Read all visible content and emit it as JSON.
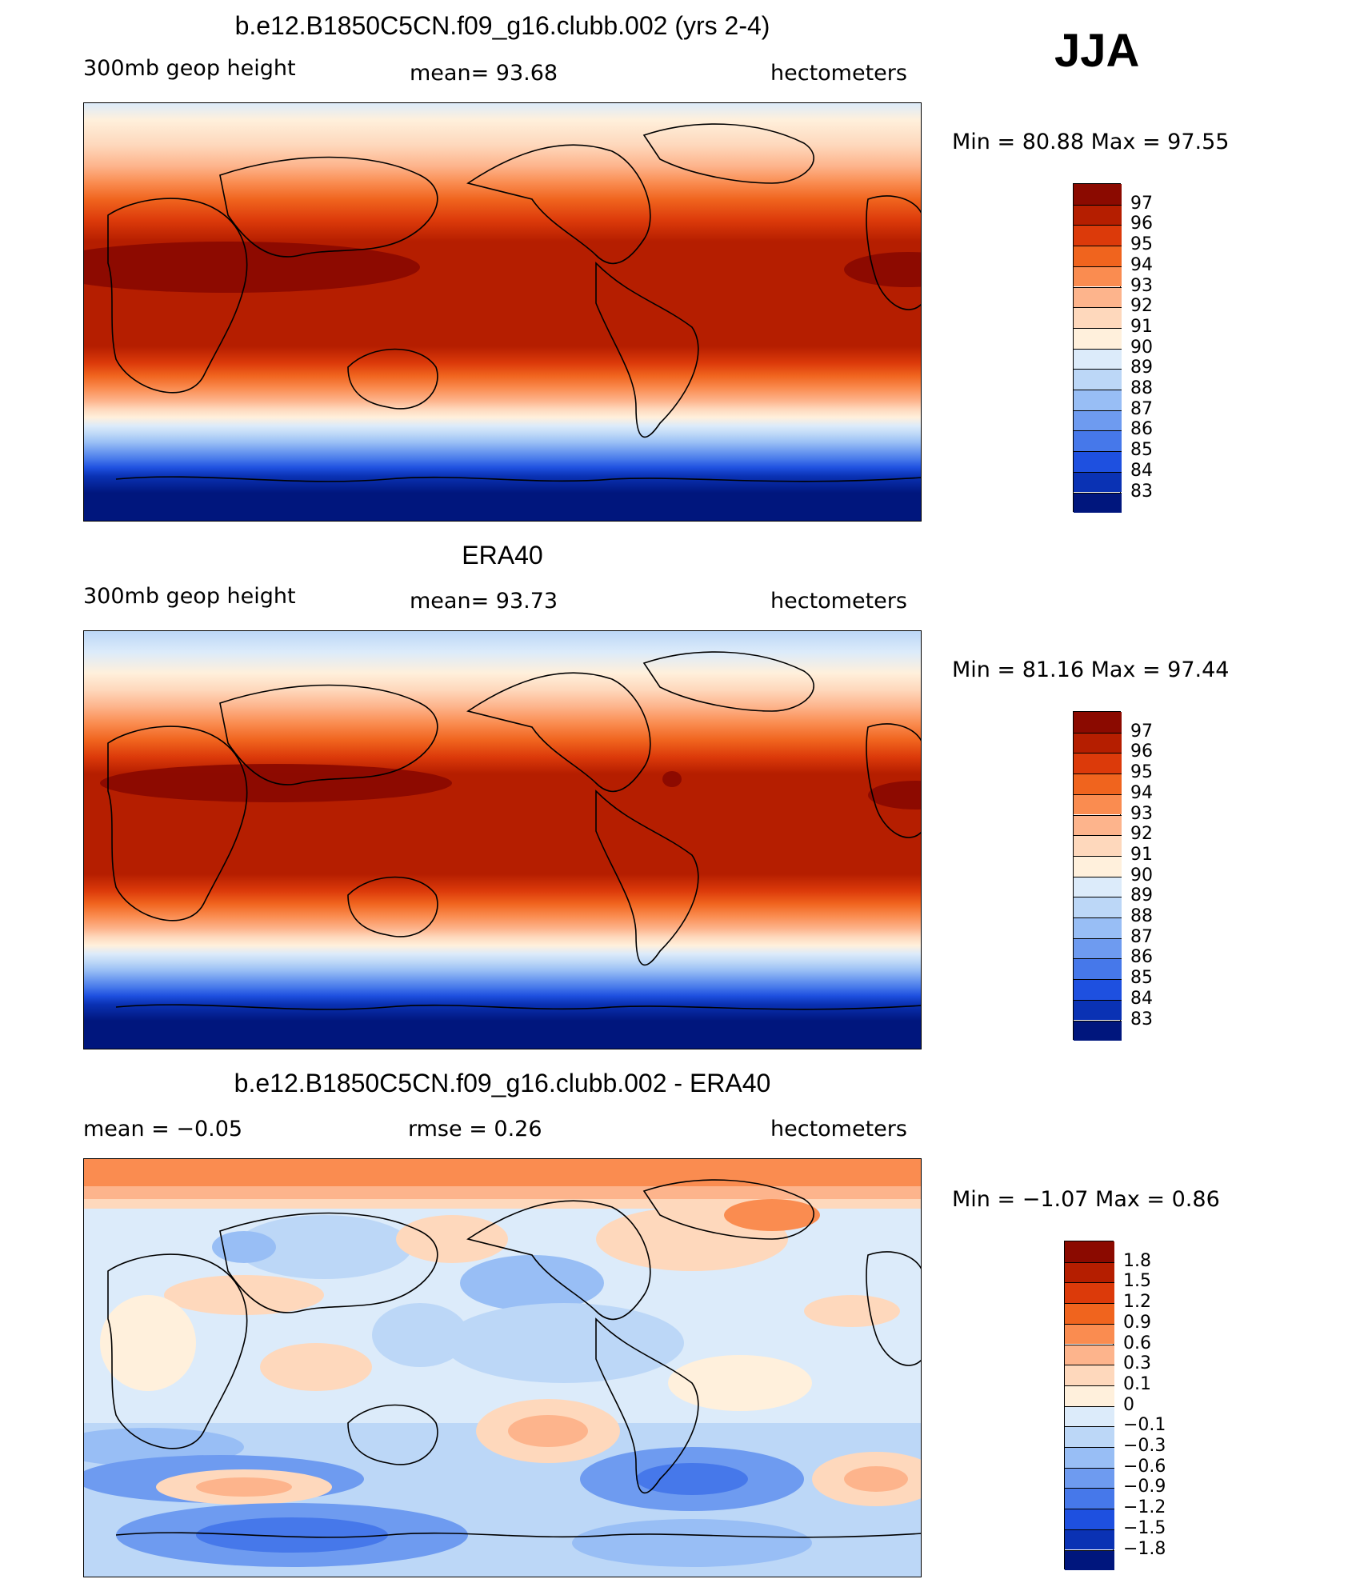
{
  "season": "JJA",
  "panels": [
    {
      "title": "b.e12.B1850C5CN.f09_g16.clubb.002 (yrs 2-4)",
      "variable": "300mb geop height",
      "stat": "mean=   93.68",
      "units": "hectometers",
      "minmax": "Min =   80.88 Max =   97.55"
    },
    {
      "title": "ERA40",
      "variable": "300mb geop height",
      "stat": "mean=   93.73",
      "units": "hectometers",
      "minmax": "Min =   81.16 Max =   97.44"
    },
    {
      "title": "b.e12.B1850C5CN.f09_g16.clubb.002 - ERA40",
      "variable": "mean =   −0.05",
      "stat": "rmse =    0.26",
      "units": "hectometers",
      "minmax": "Min =   −1.07 Max =    0.86"
    }
  ],
  "colorbars": {
    "height": {
      "colors": [
        "#8b0a00",
        "#b51e00",
        "#dc3a0a",
        "#f0641e",
        "#fa8c50",
        "#fdb48c",
        "#fed8bc",
        "#fff0dc",
        "#dcebfa",
        "#bcd7f7",
        "#98bef5",
        "#6e9bf0",
        "#4678ea",
        "#1e50e0",
        "#0a32b4",
        "#00167d"
      ],
      "labels": [
        "97",
        "96",
        "95",
        "94",
        "93",
        "92",
        "91",
        "90",
        "89",
        "88",
        "87",
        "86",
        "85",
        "84",
        "83"
      ]
    },
    "diff": {
      "colors": [
        "#8b0a00",
        "#b51e00",
        "#dc3a0a",
        "#f0641e",
        "#fa8c50",
        "#fdb48c",
        "#fed8bc",
        "#fff0dc",
        "#dcebfa",
        "#bcd7f7",
        "#98bef5",
        "#6e9bf0",
        "#4678ea",
        "#1e50e0",
        "#0a32b4",
        "#00167d"
      ],
      "labels": [
        "1.8",
        "1.5",
        "1.2",
        "0.9",
        "0.6",
        "0.3",
        "0.1",
        "0",
        "−0.1",
        "−0.3",
        "−0.6",
        "−0.9",
        "−1.2",
        "−1.5",
        "−1.8"
      ]
    }
  }
}
